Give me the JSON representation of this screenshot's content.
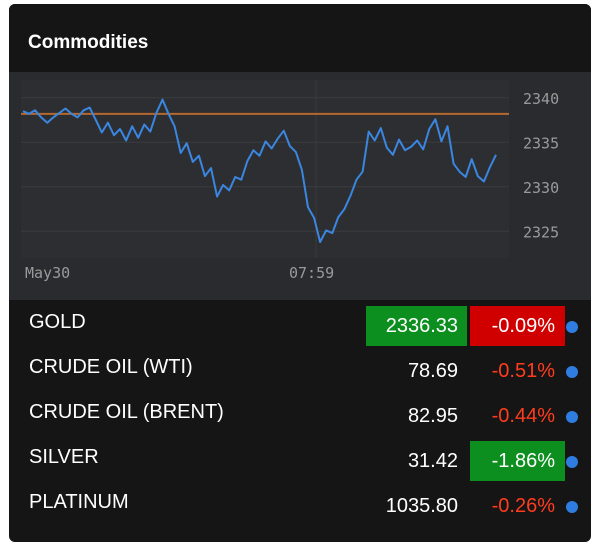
{
  "widget": {
    "title": "Commodities"
  },
  "chart_data": {
    "type": "line",
    "x_ticks": [
      "May30",
      "07:59"
    ],
    "y_ticks": [
      2340,
      2335,
      2330,
      2325
    ],
    "ylim": [
      2322,
      2342
    ],
    "reference_value": 2338.2,
    "series": [
      {
        "values": [
          2338.5,
          2338.2,
          2338.6,
          2337.8,
          2337.2,
          2337.8,
          2338.3,
          2338.8,
          2338.2,
          2337.8,
          2338.6,
          2338.9,
          2337.5,
          2336.1,
          2337.2,
          2335.8,
          2336.5,
          2335.2,
          2336.8,
          2335.5,
          2337.0,
          2336.2,
          2338.3,
          2339.8,
          2338.2,
          2336.8,
          2333.8,
          2334.9,
          2332.8,
          2333.5,
          2331.2,
          2332.1,
          2328.9,
          2330.2,
          2329.6,
          2331.1,
          2330.8,
          2332.9,
          2334.1,
          2333.5,
          2335.1,
          2334.3,
          2335.4,
          2336.3,
          2334.6,
          2333.9,
          2331.9,
          2327.7,
          2326.5,
          2323.8,
          2325.1,
          2324.8,
          2326.6,
          2327.5,
          2329.0,
          2330.8,
          2331.7,
          2336.2,
          2335.2,
          2336.6,
          2334.4,
          2333.6,
          2335.3,
          2334.1,
          2334.5,
          2335.2,
          2334.2,
          2336.5,
          2337.6,
          2335.1,
          2336.8,
          2332.6,
          2331.7,
          2331.1,
          2333.1,
          2331.2,
          2330.6,
          2332.2,
          2333.6
        ]
      }
    ],
    "colors": {
      "line": "#3a86e0",
      "reference": "#b5692e"
    }
  },
  "commodities": [
    {
      "name": "GOLD",
      "price": "2336.33",
      "change": "-0.09%",
      "price_highlight": "up",
      "change_highlight": "down"
    },
    {
      "name": "CRUDE OIL (WTI)",
      "price": "78.69",
      "change": "-0.51%",
      "price_highlight": "",
      "change_highlight": ""
    },
    {
      "name": "CRUDE OIL (BRENT)",
      "price": "82.95",
      "change": "-0.44%",
      "price_highlight": "",
      "change_highlight": ""
    },
    {
      "name": "SILVER",
      "price": "31.42",
      "change": "-1.86%",
      "price_highlight": "",
      "change_highlight": "up"
    },
    {
      "name": "PLATINUM",
      "price": "1035.80",
      "change": "-0.26%",
      "price_highlight": "",
      "change_highlight": ""
    }
  ],
  "colors": {
    "up": "#0c8f1e",
    "down": "#d00000",
    "negative_text": "#ff3c1e",
    "dot": "#2f7de1"
  }
}
